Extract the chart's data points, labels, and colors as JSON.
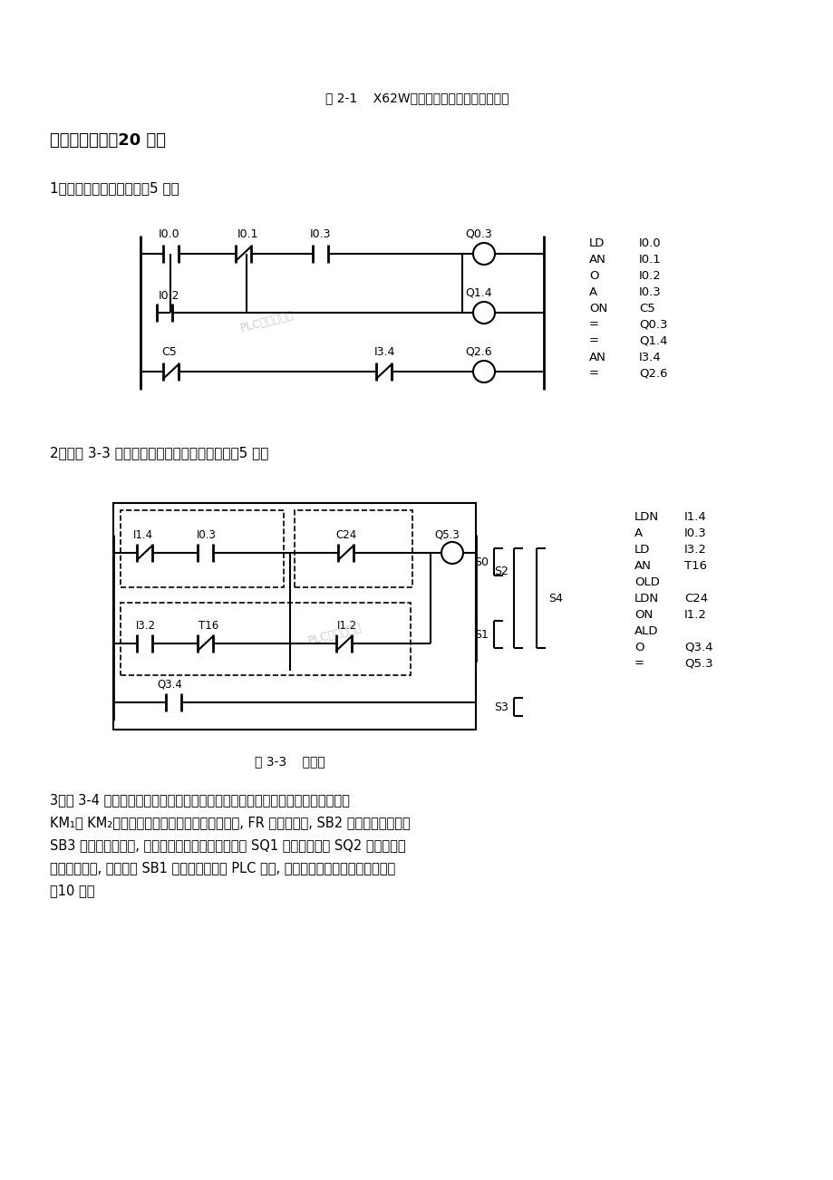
{
  "title_fig21": "图 2-1    X62W卧式万能铣床电气控制原理图",
  "section3_title": "三、设计题（共20 分）",
  "q1_title": "1、由语句表画梯形图。（5 分）",
  "q2_title": "2、将图 3-3 的梯形图转换为对应的语句表。（5 分）",
  "fig33_caption": "图 3-3    梯形图",
  "q3_title": "3、图 3-4 是一个三相一部电动机正反转控制的主电路和继电器控制电路图，其中KM₁和 KM₂是分别控制正传和反转的交流接触器, FR 是热继电器, SB2 是右行启动按钮，SB3 是左行启动按钮, 启动后要求小车在左限位开关 SQ1 和右限位开关 SQ2 之间不停地自动循环往复, 直至按下 SB1 停止。今要求用 PLC 控制, 请设计其外部接线图和梯形图。（10 分）",
  "watermark": "PLC编程及应用",
  "bg_color": "#ffffff",
  "text_color": "#000000",
  "ladder1_instructions": [
    "LD  I0.0",
    "AN  I0.1",
    "O   I0.2",
    "A   I0.3",
    "ON  C5",
    "=   Q0.3",
    "=   Q1.4",
    "AN  I3.4",
    "=   Q2.6"
  ],
  "ladder2_instructions": [
    "LDN  I1.4",
    "A    I0.3",
    "LD   I3.2",
    "AN   T16",
    "OLD",
    "LDN  C24",
    "ON   I1.2",
    "ALD",
    "O    Q3.4",
    "=    Q5.3"
  ]
}
